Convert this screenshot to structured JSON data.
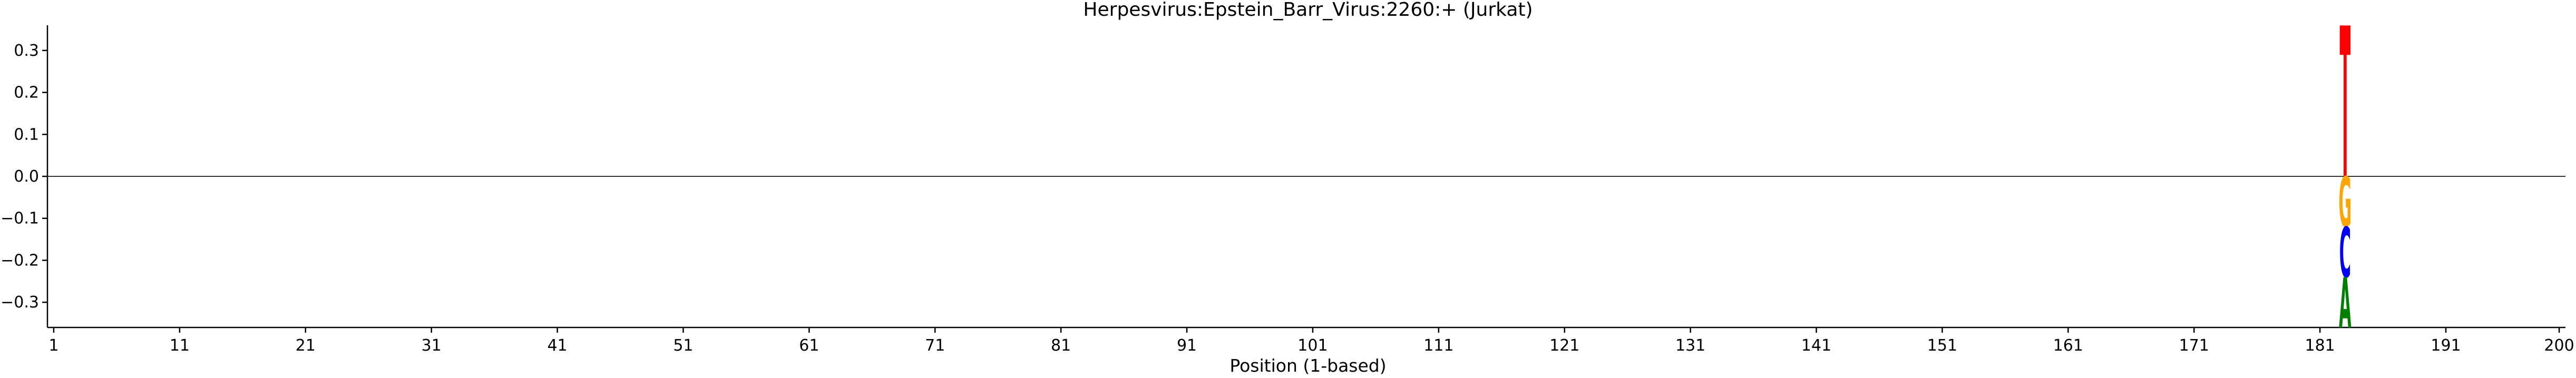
{
  "chart_data": {
    "type": "sequence-logo",
    "title": "Herpesvirus:Epstein_Barr_Virus:2260:+  (Jurkat)",
    "xlabel": "Position (1-based)",
    "ylabel": "",
    "xlim": [
      1,
      200
    ],
    "ylim": [
      -0.36,
      0.36
    ],
    "x_ticks": [
      1,
      11,
      21,
      31,
      41,
      51,
      61,
      71,
      81,
      91,
      101,
      111,
      121,
      131,
      141,
      151,
      161,
      171,
      181,
      191,
      200
    ],
    "y_ticks": [
      0.3,
      0.2,
      0.1,
      0.0,
      -0.1,
      -0.2,
      -0.3
    ],
    "y_tick_labels": [
      "0.3",
      "0.2",
      "0.1",
      "0.0",
      "−0.1",
      "−0.2",
      "−0.3"
    ],
    "zero_line": true,
    "grid": false,
    "letters": [
      {
        "position": 183,
        "base": "T",
        "value": 0.36,
        "color": "#ff0000"
      },
      {
        "position": 183,
        "base": "G",
        "value": -0.12,
        "color": "#ffa500"
      },
      {
        "position": 183,
        "base": "C",
        "value": -0.12,
        "color": "#0000ff"
      },
      {
        "position": 183,
        "base": "A",
        "value": -0.12,
        "color": "#008000"
      }
    ]
  }
}
